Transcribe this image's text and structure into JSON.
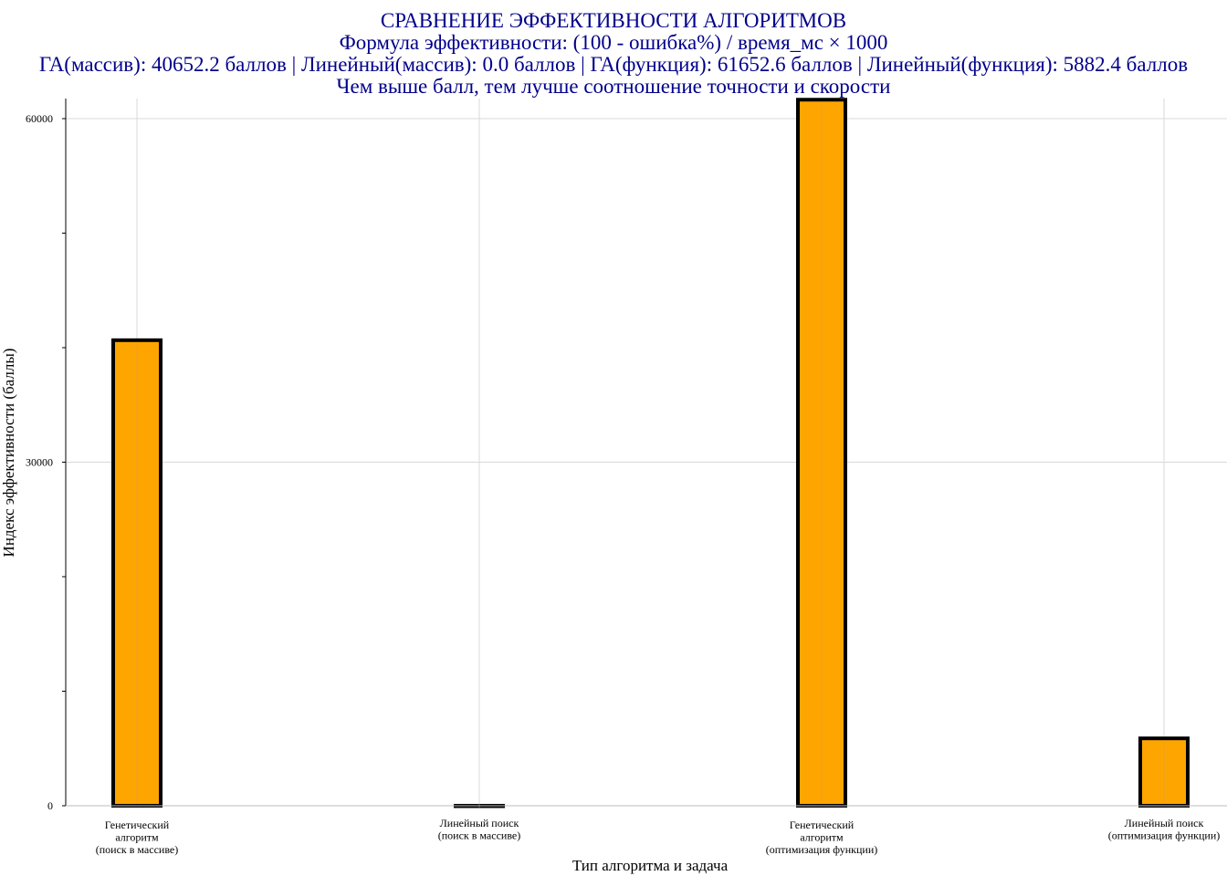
{
  "chart_data": {
    "type": "bar",
    "title_lines": [
      "СРАВНЕНИЕ ЭФФЕКТИВНОСТИ АЛГОРИТМОВ",
      "Формула эффективности: (100 - ошибка%) / время_мс × 1000",
      "ГА(массив): 40652.2 баллов | Линейный(массив): 0.0 баллов | ГА(функция): 61652.6 баллов | Линейный(функция): 5882.4 баллов",
      "Чем выше балл, тем лучше соотношение точности и скорости"
    ],
    "categories": [
      [
        "Генетический",
        "алгоритм",
        "(поиск в массиве)"
      ],
      [
        "Линейный поиск",
        "(поиск в массиве)"
      ],
      [
        "Генетический",
        "алгоритм",
        "(оптимизация функции)"
      ],
      [
        "Линейный поиск",
        "(оптимизация функции)"
      ]
    ],
    "values": [
      40652.2,
      0.0,
      61652.6,
      5882.4
    ],
    "xlabel": "Тип алгоритма и задача",
    "ylabel": "Индекс эффективности (баллы)",
    "ylim": [
      0,
      61652.6
    ],
    "yticks": [
      0,
      30000,
      60000
    ],
    "yticks_labels": [
      "0",
      "30000",
      "60000"
    ],
    "grid": true,
    "colors": {
      "bar_fill": "#FFA500",
      "bar_stroke": "#000000",
      "title": "#00008B",
      "grid": "#d9d9d9",
      "axis": "#000000"
    }
  }
}
